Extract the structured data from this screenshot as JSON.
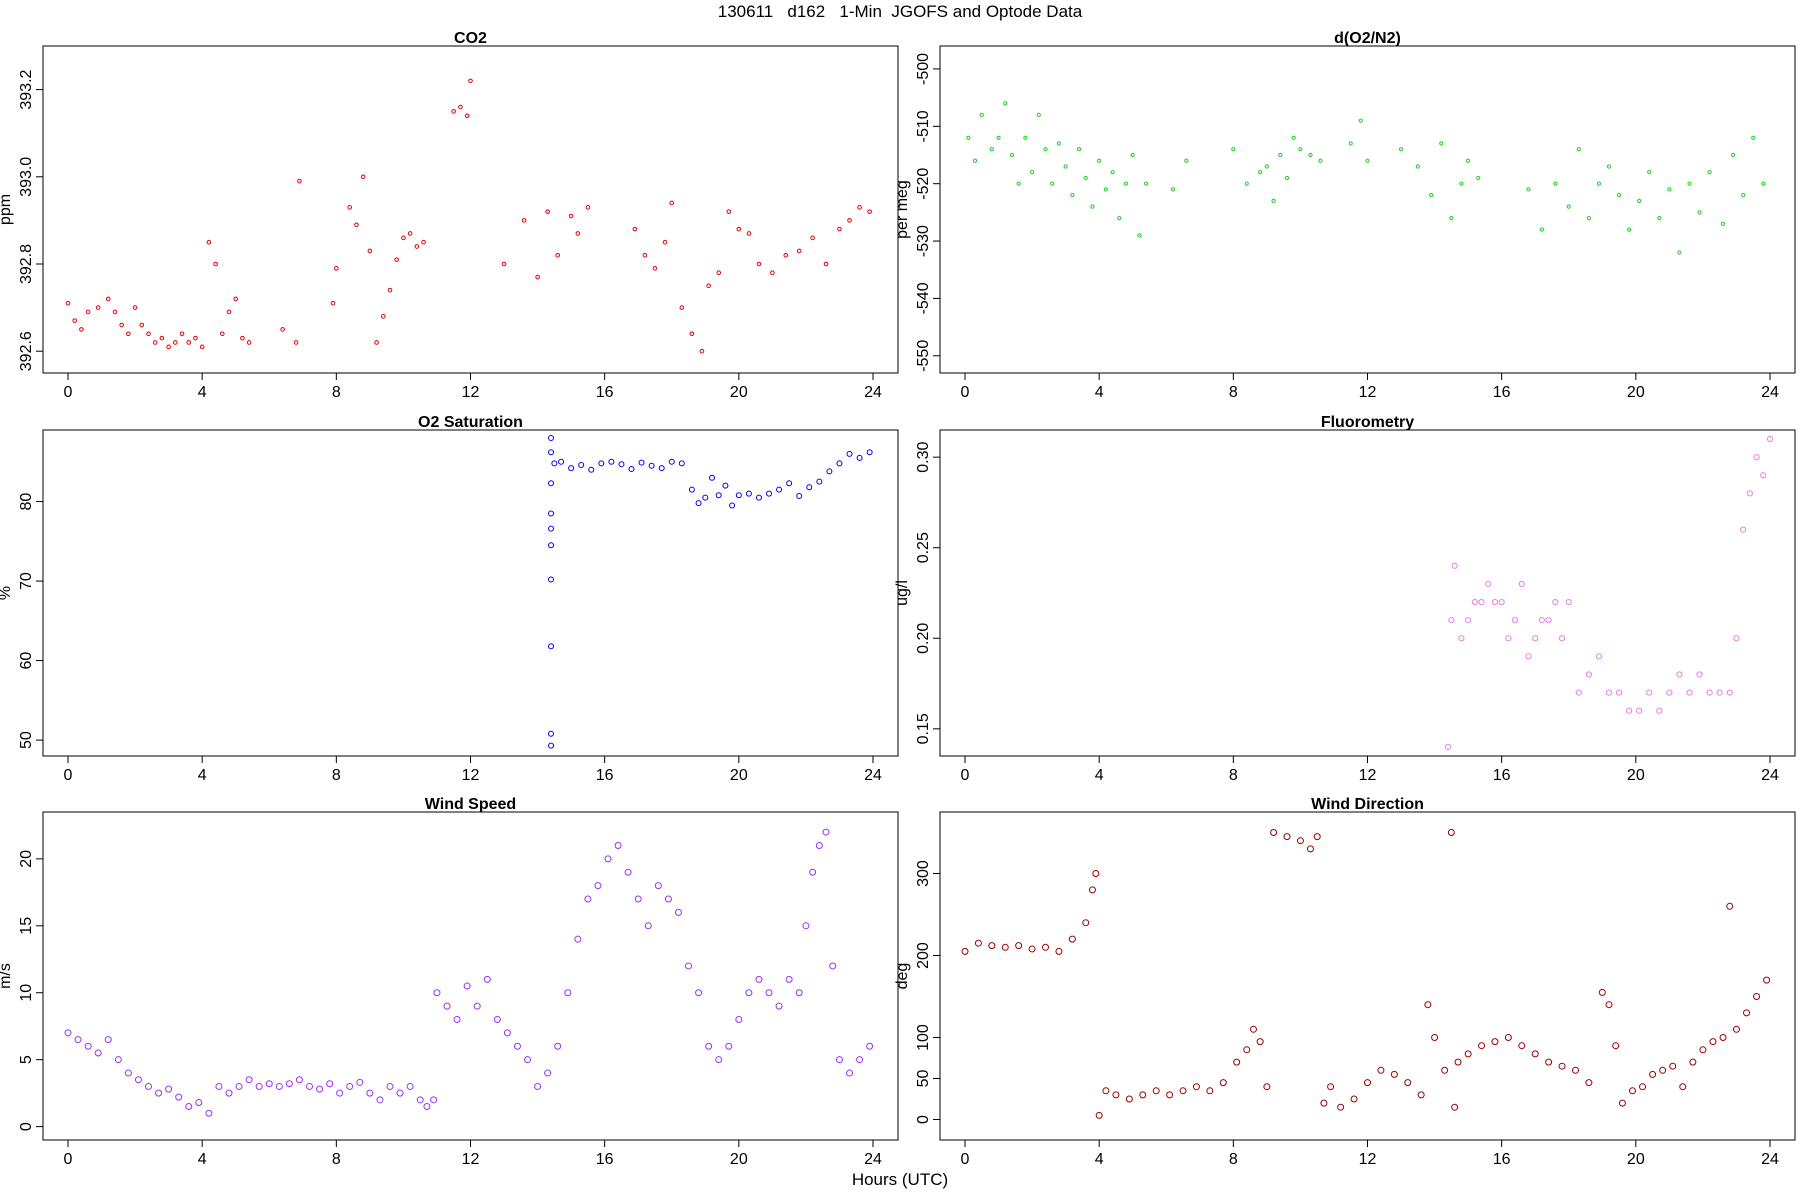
{
  "page_title": "130611   d162   1-Min  JGOFS and Optode Data",
  "xlabel": "Hours (UTC)",
  "chart_data": [
    {
      "type": "scatter",
      "title": "CO2",
      "ylabel": "ppm",
      "xlim": [
        0,
        24
      ],
      "ylim": [
        392.55,
        393.3
      ],
      "xticks": [
        0,
        4,
        8,
        12,
        16,
        20,
        24
      ],
      "yticks": [
        392.6,
        392.8,
        393.0,
        393.2
      ],
      "ytick_labels": [
        "392.6",
        "392.8",
        "393.0",
        "393.2"
      ],
      "color": "#e00000",
      "marker_radius": 1.8,
      "series": [
        {
          "x": [
            0.0,
            0.2,
            0.4,
            0.6,
            0.9,
            1.2,
            1.4,
            1.6,
            1.8,
            2.0,
            2.2,
            2.4,
            2.6,
            2.8,
            3.0,
            3.2,
            3.4,
            3.6,
            3.8,
            4.0,
            4.2,
            4.4,
            4.6,
            4.8,
            5.0,
            5.2,
            5.4,
            6.4,
            6.8,
            6.9,
            7.9,
            8.0,
            8.4,
            8.6,
            8.8,
            9.0,
            9.2,
            9.4,
            9.6,
            9.8,
            10.0,
            10.2,
            10.4,
            10.6,
            11.5,
            11.7,
            11.9,
            12.0,
            13.0,
            13.6,
            14.0,
            14.3,
            14.6,
            15.0,
            15.2,
            15.5,
            16.9,
            17.2,
            17.5,
            17.8,
            18.0,
            18.3,
            18.6,
            18.9,
            19.1,
            19.4,
            19.7,
            20.0,
            20.3,
            20.6,
            21.0,
            21.4,
            21.8,
            22.2,
            22.6,
            23.0,
            23.3,
            23.6,
            23.9
          ],
          "y": [
            392.71,
            392.67,
            392.65,
            392.69,
            392.7,
            392.72,
            392.69,
            392.66,
            392.64,
            392.7,
            392.66,
            392.64,
            392.62,
            392.63,
            392.61,
            392.62,
            392.64,
            392.62,
            392.63,
            392.61,
            392.85,
            392.8,
            392.64,
            392.69,
            392.72,
            392.63,
            392.62,
            392.65,
            392.62,
            392.99,
            392.71,
            392.79,
            392.93,
            392.89,
            393.0,
            392.83,
            392.62,
            392.68,
            392.74,
            392.81,
            392.86,
            392.87,
            392.84,
            392.85,
            393.15,
            393.16,
            393.14,
            393.22,
            392.8,
            392.9,
            392.77,
            392.92,
            392.82,
            392.91,
            392.87,
            392.93,
            392.88,
            392.82,
            392.79,
            392.85,
            392.94,
            392.7,
            392.64,
            392.6,
            392.75,
            392.78,
            392.92,
            392.88,
            392.87,
            392.8,
            392.78,
            392.82,
            392.83,
            392.86,
            392.8,
            392.88,
            392.9,
            392.93,
            392.92
          ]
        }
      ]
    },
    {
      "type": "scatter",
      "title": "d(O2/N2)",
      "ylabel": "per meg",
      "xlim": [
        0,
        24
      ],
      "ylim": [
        -553,
        -496
      ],
      "xticks": [
        0,
        4,
        8,
        12,
        16,
        20,
        24
      ],
      "yticks": [
        -550,
        -540,
        -530,
        -520,
        -510,
        -500
      ],
      "ytick_labels": [
        "-550",
        "-540",
        "-530",
        "-520",
        "-510",
        "-500"
      ],
      "color": "#22cc22",
      "marker_radius": 1.6,
      "series": [
        {
          "x": [
            0.1,
            0.3,
            0.5,
            0.8,
            1.0,
            1.2,
            1.4,
            1.6,
            1.8,
            2.0,
            2.2,
            2.4,
            2.6,
            2.8,
            3.0,
            3.2,
            3.4,
            3.6,
            3.8,
            4.0,
            4.2,
            4.4,
            4.6,
            4.8,
            5.0,
            5.2,
            5.4,
            6.2,
            6.6,
            8.0,
            8.4,
            8.8,
            9.0,
            9.2,
            9.4,
            9.6,
            9.8,
            10.0,
            10.3,
            10.6,
            11.5,
            11.8,
            12.0,
            13.0,
            13.5,
            13.9,
            14.2,
            14.5,
            14.8,
            15.0,
            15.3,
            16.8,
            17.2,
            17.6,
            18.0,
            18.3,
            18.6,
            18.9,
            19.2,
            19.5,
            19.8,
            20.1,
            20.4,
            20.7,
            21.0,
            21.3,
            21.6,
            21.9,
            22.2,
            22.6,
            22.9,
            23.2,
            23.5,
            23.8
          ],
          "y": [
            -512,
            -516,
            -508,
            -514,
            -512,
            -506,
            -515,
            -520,
            -512,
            -518,
            -508,
            -514,
            -520,
            -513,
            -517,
            -522,
            -514,
            -519,
            -524,
            -516,
            -521,
            -518,
            -526,
            -520,
            -515,
            -529,
            -520,
            -521,
            -516,
            -514,
            -520,
            -518,
            -517,
            -523,
            -515,
            -519,
            -512,
            -514,
            -515,
            -516,
            -513,
            -509,
            -516,
            -514,
            -517,
            -522,
            -513,
            -526,
            -520,
            -516,
            -519,
            -521,
            -528,
            -520,
            -524,
            -514,
            -526,
            -520,
            -517,
            -522,
            -528,
            -523,
            -518,
            -526,
            -521,
            -532,
            -520,
            -525,
            -518,
            -527,
            -515,
            -522,
            -512,
            -520
          ]
        }
      ]
    },
    {
      "type": "scatter",
      "title": "O2 Saturation",
      "ylabel": "%",
      "xlim": [
        0,
        24
      ],
      "ylim": [
        48,
        89
      ],
      "xticks": [
        0,
        4,
        8,
        12,
        16,
        20,
        24
      ],
      "yticks": [
        50,
        60,
        70,
        80
      ],
      "ytick_labels": [
        "50",
        "60",
        "70",
        "80"
      ],
      "color": "#0000ee",
      "marker_radius": 2.5,
      "series": [
        {
          "x": [
            14.4,
            14.4,
            14.4,
            14.4,
            14.4,
            14.4,
            14.4,
            14.4,
            14.4,
            14.4,
            14.5,
            14.7,
            15.0,
            15.3,
            15.6,
            15.9,
            16.2,
            16.5,
            16.8,
            17.1,
            17.4,
            17.7,
            18.0,
            18.3,
            18.6,
            18.8,
            19.0,
            19.2,
            19.4,
            19.6,
            19.8,
            20.0,
            20.3,
            20.6,
            20.9,
            21.2,
            21.5,
            21.8,
            22.1,
            22.4,
            22.7,
            23.0,
            23.3,
            23.6,
            23.9
          ],
          "y": [
            49.3,
            50.8,
            61.8,
            70.2,
            74.5,
            76.6,
            78.5,
            82.3,
            86.2,
            88.0,
            84.8,
            85.0,
            84.2,
            84.6,
            84.0,
            84.8,
            85.0,
            84.7,
            84.1,
            84.9,
            84.5,
            84.2,
            85.0,
            84.8,
            81.5,
            79.8,
            80.5,
            83.0,
            80.8,
            82.0,
            79.5,
            80.8,
            81.0,
            80.5,
            81.0,
            81.5,
            82.3,
            80.7,
            81.8,
            82.5,
            83.8,
            84.8,
            86.0,
            85.5,
            86.2
          ]
        }
      ]
    },
    {
      "type": "scatter",
      "title": "Fluorometry",
      "ylabel": "ug/l",
      "xlim": [
        0,
        24
      ],
      "ylim": [
        0.135,
        0.315
      ],
      "xticks": [
        0,
        4,
        8,
        12,
        16,
        20,
        24
      ],
      "yticks": [
        0.15,
        0.2,
        0.25,
        0.3
      ],
      "ytick_labels": [
        "0.15",
        "0.20",
        "0.25",
        "0.30"
      ],
      "color": "#e87de8",
      "marker_radius": 2.6,
      "series": [
        {
          "x": [
            14.4,
            14.5,
            14.6,
            14.8,
            15.0,
            15.2,
            15.4,
            15.6,
            15.8,
            16.0,
            16.2,
            16.4,
            16.6,
            16.8,
            17.0,
            17.2,
            17.4,
            17.6,
            17.8,
            18.0,
            18.3,
            18.6,
            18.9,
            19.2,
            19.5,
            19.8,
            20.1,
            20.4,
            20.7,
            21.0,
            21.3,
            21.6,
            21.9,
            22.2,
            22.5,
            22.8,
            23.0,
            23.2,
            23.4,
            23.6,
            23.8,
            24.0
          ],
          "y": [
            0.14,
            0.21,
            0.24,
            0.2,
            0.21,
            0.22,
            0.22,
            0.23,
            0.22,
            0.22,
            0.2,
            0.21,
            0.23,
            0.19,
            0.2,
            0.21,
            0.21,
            0.22,
            0.2,
            0.22,
            0.17,
            0.18,
            0.19,
            0.17,
            0.17,
            0.16,
            0.16,
            0.17,
            0.16,
            0.17,
            0.18,
            0.17,
            0.18,
            0.17,
            0.17,
            0.17,
            0.2,
            0.26,
            0.28,
            0.3,
            0.29,
            0.31
          ]
        }
      ]
    },
    {
      "type": "scatter",
      "title": "Wind Speed",
      "ylabel": "m/s",
      "xlim": [
        0,
        24
      ],
      "ylim": [
        -1,
        23.5
      ],
      "xticks": [
        0,
        4,
        8,
        12,
        16,
        20,
        24
      ],
      "yticks": [
        0,
        5,
        10,
        15,
        20
      ],
      "ytick_labels": [
        "0",
        "5",
        "10",
        "15",
        "20"
      ],
      "color": "#9933ee",
      "marker_radius": 3.0,
      "series": [
        {
          "x": [
            0.0,
            0.3,
            0.6,
            0.9,
            1.2,
            1.5,
            1.8,
            2.1,
            2.4,
            2.7,
            3.0,
            3.3,
            3.6,
            3.9,
            4.2,
            4.5,
            4.8,
            5.1,
            5.4,
            5.7,
            6.0,
            6.3,
            6.6,
            6.9,
            7.2,
            7.5,
            7.8,
            8.1,
            8.4,
            8.7,
            9.0,
            9.3,
            9.6,
            9.9,
            10.2,
            10.5,
            10.7,
            10.9,
            11.0,
            11.3,
            11.6,
            11.9,
            12.2,
            12.5,
            12.8,
            13.1,
            13.4,
            13.7,
            14.0,
            14.3,
            14.6,
            14.9,
            15.2,
            15.5,
            15.8,
            16.1,
            16.4,
            16.7,
            17.0,
            17.3,
            17.6,
            17.9,
            18.2,
            18.5,
            18.8,
            19.1,
            19.4,
            19.7,
            20.0,
            20.3,
            20.6,
            20.9,
            21.2,
            21.5,
            21.8,
            22.0,
            22.2,
            22.4,
            22.6,
            22.8,
            23.0,
            23.3,
            23.6,
            23.9
          ],
          "y": [
            7,
            6.5,
            6,
            5.5,
            6.5,
            5,
            4,
            3.5,
            3,
            2.5,
            2.8,
            2.2,
            1.5,
            1.8,
            1,
            3,
            2.5,
            3,
            3.5,
            3,
            3.2,
            3,
            3.2,
            3.5,
            3,
            2.8,
            3.2,
            2.5,
            3,
            3.3,
            2.5,
            2,
            3,
            2.5,
            3,
            2,
            1.5,
            2,
            10,
            9,
            8,
            10.5,
            9,
            11,
            8,
            7,
            6,
            5,
            3,
            4,
            6,
            10,
            14,
            17,
            18,
            20,
            21,
            19,
            17,
            15,
            18,
            17,
            16,
            12,
            10,
            6,
            5,
            6,
            8,
            10,
            11,
            10,
            9,
            11,
            10,
            15,
            19,
            21,
            22,
            12,
            5,
            4,
            5,
            6
          ]
        }
      ]
    },
    {
      "type": "scatter",
      "title": "Wind Direction",
      "ylabel": "deg",
      "xlim": [
        0,
        24
      ],
      "ylim": [
        -25,
        375
      ],
      "xticks": [
        0,
        4,
        8,
        12,
        16,
        20,
        24
      ],
      "yticks": [
        0,
        50,
        100,
        200,
        300
      ],
      "ytick_labels": [
        "0",
        "50",
        "100",
        "200",
        "300"
      ],
      "color": "#990000",
      "marker_radius": 3.0,
      "series": [
        {
          "x": [
            0.0,
            0.4,
            0.8,
            1.2,
            1.6,
            2.0,
            2.4,
            2.8,
            3.2,
            3.6,
            3.8,
            3.9,
            4.0,
            4.2,
            4.5,
            4.9,
            5.3,
            5.7,
            6.1,
            6.5,
            6.9,
            7.3,
            7.7,
            8.1,
            8.4,
            8.6,
            8.8,
            9.0,
            9.2,
            9.6,
            10.0,
            10.3,
            10.5,
            10.7,
            10.9,
            11.2,
            11.6,
            12.0,
            12.4,
            12.8,
            13.2,
            13.6,
            13.8,
            14.0,
            14.3,
            14.5,
            14.6,
            14.7,
            15.0,
            15.4,
            15.8,
            16.2,
            16.6,
            17.0,
            17.4,
            17.8,
            18.2,
            18.6,
            19.0,
            19.2,
            19.4,
            19.6,
            19.9,
            20.2,
            20.5,
            20.8,
            21.1,
            21.4,
            21.7,
            22.0,
            22.3,
            22.6,
            22.8,
            23.0,
            23.3,
            23.6,
            23.9
          ],
          "y": [
            205,
            215,
            212,
            210,
            212,
            208,
            210,
            205,
            220,
            240,
            280,
            300,
            5,
            35,
            30,
            25,
            30,
            35,
            30,
            35,
            40,
            35,
            45,
            70,
            85,
            110,
            95,
            40,
            350,
            345,
            340,
            330,
            345,
            20,
            40,
            15,
            25,
            45,
            60,
            55,
            45,
            30,
            140,
            100,
            60,
            350,
            15,
            70,
            80,
            90,
            95,
            100,
            90,
            80,
            70,
            65,
            60,
            45,
            155,
            140,
            90,
            20,
            35,
            40,
            55,
            60,
            65,
            40,
            70,
            85,
            95,
            100,
            260,
            110,
            130,
            150,
            170
          ]
        }
      ]
    }
  ]
}
